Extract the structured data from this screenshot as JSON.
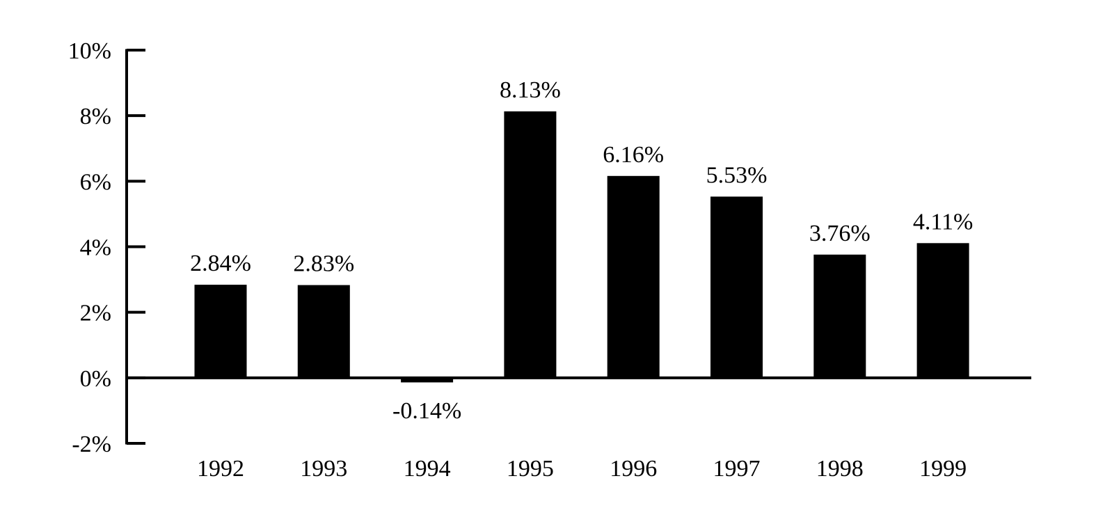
{
  "chart_data": {
    "type": "bar",
    "categories": [
      "1992",
      "1993",
      "1994",
      "1995",
      "1996",
      "1997",
      "1998",
      "1999"
    ],
    "values": [
      2.84,
      2.83,
      -0.14,
      8.13,
      6.16,
      5.53,
      3.76,
      4.11
    ],
    "data_labels": [
      "2.84%",
      "2.83%",
      "-0.14%",
      "8.13%",
      "6.16%",
      "5.53%",
      "3.76%",
      "4.11%"
    ],
    "ylim": [
      -2,
      10
    ],
    "yticks": [
      10,
      8,
      6,
      4,
      2,
      0,
      -2
    ],
    "ytick_labels": [
      "10%",
      "8%",
      "6%",
      "4%",
      "2%",
      "0%",
      "-2%"
    ],
    "title": "",
    "xlabel": "",
    "ylabel": "",
    "grid": false,
    "bar_color": "#000000"
  }
}
